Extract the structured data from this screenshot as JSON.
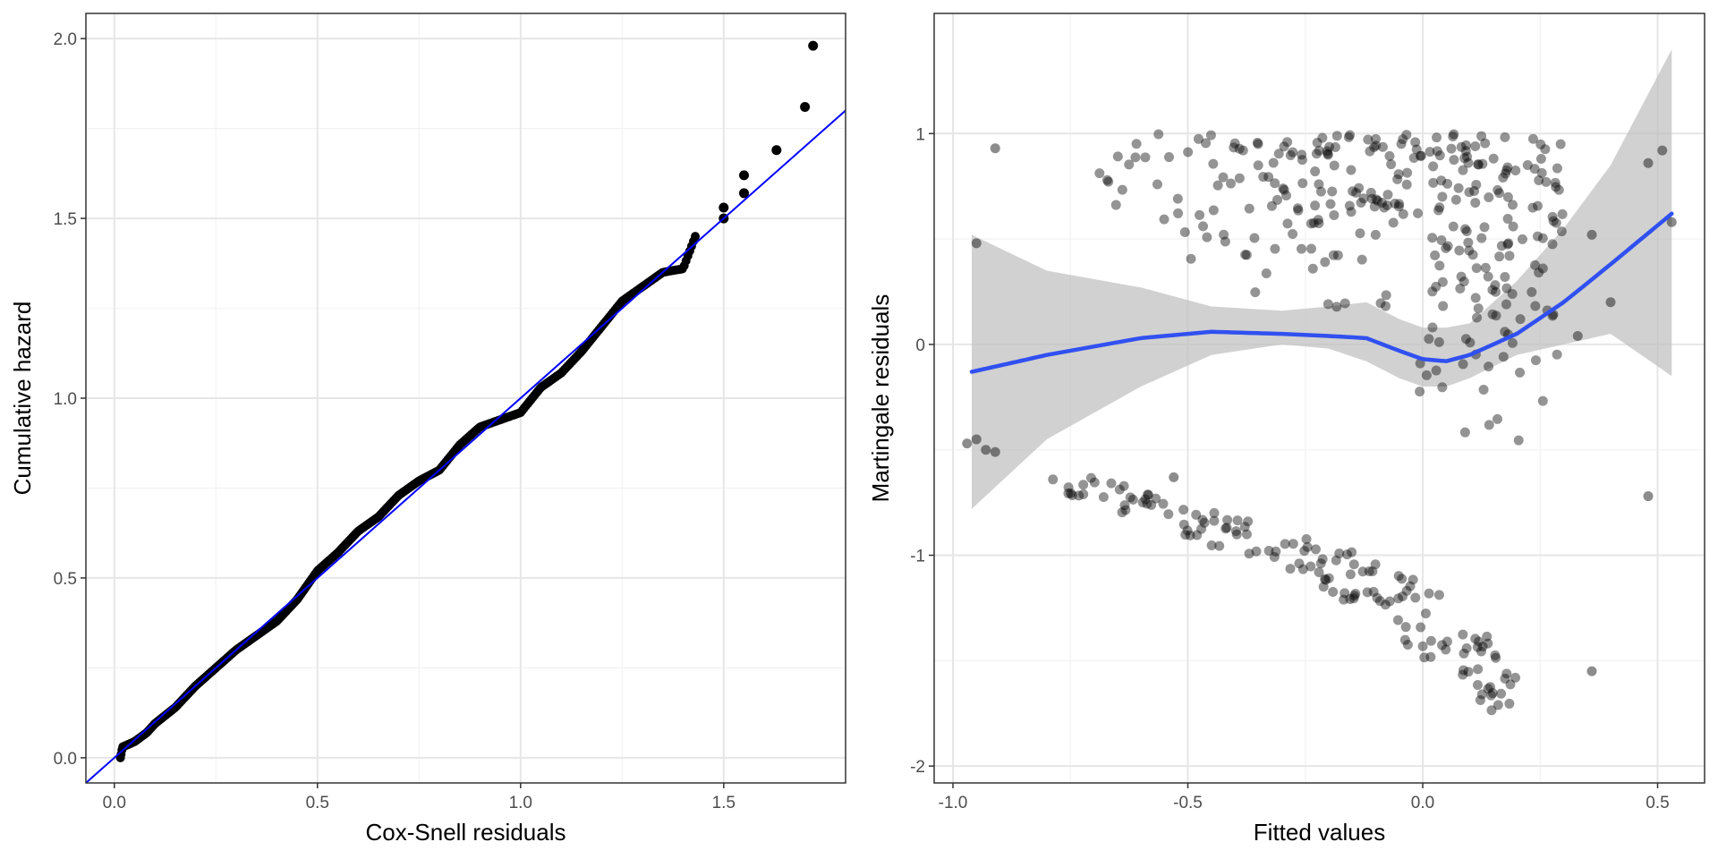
{
  "colors": {
    "background": "#ffffff",
    "panel_border": "#333333",
    "grid_major": "#e6e6e6",
    "grid_minor": "#f2f2f2",
    "tick_text": "#4d4d4d",
    "point_left": "#000000",
    "point_right": "#000000",
    "reference_line": "#0000ff",
    "smooth_line": "#3050f0",
    "ribbon": "#bfbfbf"
  },
  "chart_data": [
    {
      "type": "scatter",
      "title": "",
      "xlabel": "Cox-Snell residuals",
      "ylabel": "Cumulative hazard",
      "xlim": [
        -0.07,
        1.8
      ],
      "ylim": [
        -0.07,
        2.07
      ],
      "x_ticks": [
        0.0,
        0.5,
        1.0,
        1.5
      ],
      "x_tick_labels": [
        "0.0",
        "0.5",
        "1.0",
        "1.5"
      ],
      "y_ticks": [
        0.0,
        0.5,
        1.0,
        1.5,
        2.0
      ],
      "y_tick_labels": [
        "0.0",
        "0.5",
        "1.0",
        "1.5",
        "2.0"
      ],
      "reference_line": {
        "intercept": 0,
        "slope": 1,
        "label": "y = x"
      },
      "curve_points": [
        [
          0.015,
          0.0
        ],
        [
          0.02,
          0.03
        ],
        [
          0.05,
          0.045
        ],
        [
          0.08,
          0.07
        ],
        [
          0.1,
          0.095
        ],
        [
          0.15,
          0.14
        ],
        [
          0.2,
          0.2
        ],
        [
          0.25,
          0.25
        ],
        [
          0.3,
          0.3
        ],
        [
          0.35,
          0.34
        ],
        [
          0.4,
          0.38
        ],
        [
          0.45,
          0.44
        ],
        [
          0.5,
          0.52
        ],
        [
          0.55,
          0.57
        ],
        [
          0.6,
          0.63
        ],
        [
          0.65,
          0.67
        ],
        [
          0.7,
          0.73
        ],
        [
          0.75,
          0.77
        ],
        [
          0.8,
          0.8
        ],
        [
          0.85,
          0.87
        ],
        [
          0.9,
          0.92
        ],
        [
          0.95,
          0.94
        ],
        [
          1.0,
          0.96
        ],
        [
          1.05,
          1.03
        ],
        [
          1.1,
          1.07
        ],
        [
          1.15,
          1.13
        ],
        [
          1.2,
          1.2
        ],
        [
          1.25,
          1.27
        ],
        [
          1.3,
          1.31
        ],
        [
          1.35,
          1.35
        ],
        [
          1.4,
          1.36
        ],
        [
          1.43,
          1.45
        ]
      ],
      "points": [
        [
          1.5,
          1.5
        ],
        [
          1.5,
          1.53
        ],
        [
          1.55,
          1.57
        ],
        [
          1.55,
          1.62
        ],
        [
          1.63,
          1.69
        ],
        [
          1.7,
          1.81
        ],
        [
          1.72,
          1.98
        ]
      ]
    },
    {
      "type": "scatter",
      "title": "",
      "xlabel": "Fitted values",
      "ylabel": "Martingale residuals",
      "xlim": [
        -1.04,
        0.6
      ],
      "ylim": [
        -2.08,
        1.57
      ],
      "x_ticks": [
        -1.0,
        -0.5,
        0.0,
        0.5
      ],
      "x_tick_labels": [
        "-1.0",
        "-0.5",
        "0.0",
        "0.5"
      ],
      "y_ticks": [
        -2,
        -1,
        0,
        1
      ],
      "y_tick_labels": [
        "-2",
        "-1",
        "0",
        "1"
      ],
      "smooth": {
        "x": [
          -0.96,
          -0.8,
          -0.6,
          -0.45,
          -0.3,
          -0.2,
          -0.12,
          -0.05,
          0.0,
          0.05,
          0.1,
          0.2,
          0.3,
          0.4,
          0.53
        ],
        "y": [
          -0.13,
          -0.05,
          0.03,
          0.06,
          0.05,
          0.04,
          0.03,
          -0.03,
          -0.07,
          -0.08,
          -0.05,
          0.05,
          0.2,
          0.38,
          0.62
        ],
        "lower": [
          -0.78,
          -0.45,
          -0.2,
          -0.05,
          0.0,
          -0.02,
          -0.08,
          -0.16,
          -0.2,
          -0.2,
          -0.16,
          -0.05,
          0.0,
          0.05,
          -0.15
        ],
        "upper": [
          0.52,
          0.35,
          0.27,
          0.18,
          0.16,
          0.18,
          0.2,
          0.12,
          0.08,
          0.08,
          0.1,
          0.3,
          0.55,
          0.85,
          1.4
        ]
      },
      "band_top": {
        "x": [
          -0.75,
          -0.5,
          -0.3,
          -0.1,
          0.0,
          0.1,
          0.2,
          0.3
        ],
        "lo": [
          0.6,
          0.25,
          0.15,
          0.1,
          -0.35,
          -0.55,
          -0.7,
          -0.2
        ],
        "hi": [
          1.0,
          1.0,
          1.0,
          1.0,
          1.0,
          1.0,
          0.98,
          0.97
        ]
      },
      "band_bottom": {
        "x": [
          -0.8,
          -0.6,
          -0.4,
          -0.2,
          0.0,
          0.1,
          0.2
        ],
        "center": [
          -0.63,
          -0.75,
          -0.9,
          -1.05,
          -1.3,
          -1.45,
          -1.7
        ],
        "spread": [
          0.05,
          0.08,
          0.1,
          0.12,
          0.18,
          0.18,
          0.2
        ]
      },
      "extra_points": [
        [
          -0.97,
          -0.47
        ],
        [
          -0.95,
          -0.45
        ],
        [
          -0.93,
          -0.5
        ],
        [
          -0.91,
          -0.51
        ],
        [
          -0.95,
          0.48
        ],
        [
          -0.91,
          0.93
        ],
        [
          -0.53,
          -0.63
        ],
        [
          0.48,
          -0.72
        ],
        [
          0.51,
          0.92
        ],
        [
          0.53,
          0.58
        ],
        [
          0.36,
          -1.55
        ],
        [
          0.4,
          0.2
        ],
        [
          0.48,
          0.86
        ],
        [
          0.33,
          0.04
        ],
        [
          0.36,
          0.52
        ]
      ]
    }
  ]
}
